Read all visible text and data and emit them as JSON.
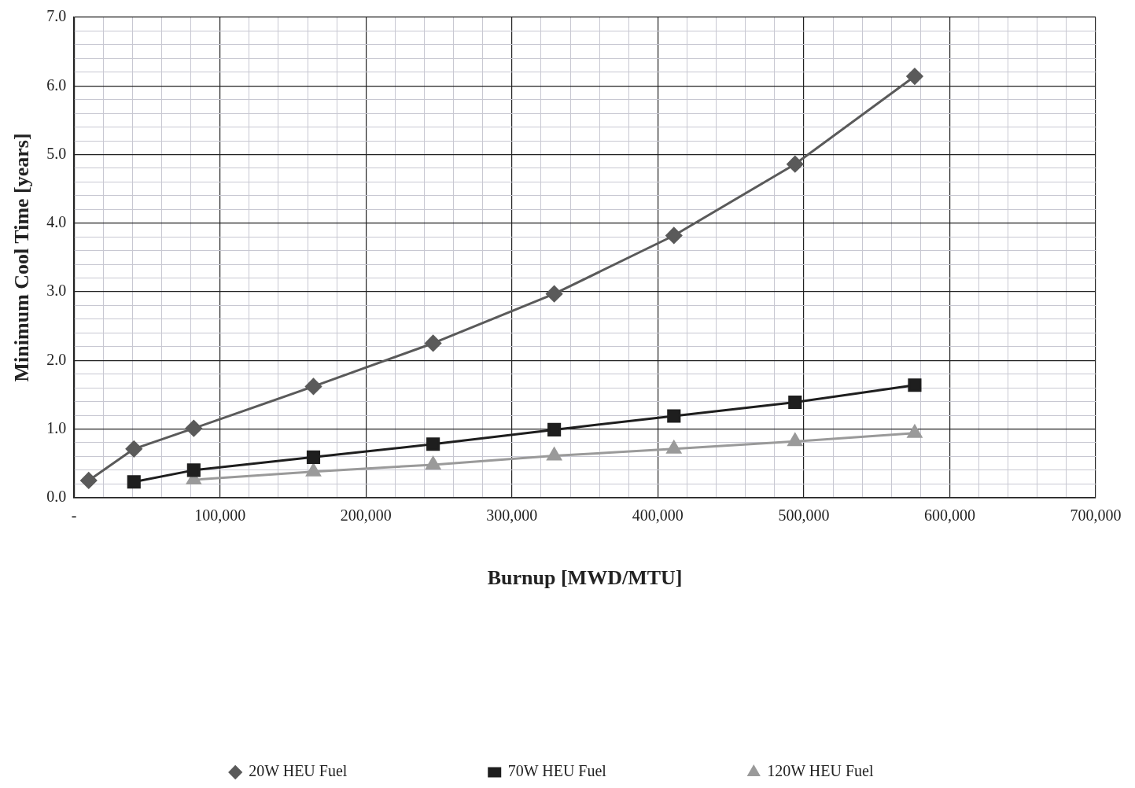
{
  "chart_data": {
    "type": "line",
    "xlabel": "Burnup [MWD/MTU]",
    "ylabel": "Minimum Cool Time [years]",
    "series": [
      {
        "name": "20W HEU Fuel",
        "color": "#5a5a5a",
        "marker": "diamond",
        "x": [
          10000,
          41000,
          82000,
          164000,
          246000,
          329000,
          411000,
          494000,
          576000
        ],
        "values": [
          0.25,
          0.71,
          1.01,
          1.62,
          2.25,
          2.97,
          3.82,
          4.86,
          6.14
        ]
      },
      {
        "name": "70W HEU Fuel",
        "color": "#1e1e1e",
        "marker": "square",
        "x": [
          41000,
          82000,
          164000,
          246000,
          329000,
          411000,
          494000,
          576000
        ],
        "values": [
          0.23,
          0.4,
          0.59,
          0.78,
          0.99,
          1.19,
          1.39,
          1.64
        ]
      },
      {
        "name": "120W HEU Fuel",
        "color": "#9a9a9a",
        "marker": "triangle",
        "x": [
          82000,
          164000,
          246000,
          329000,
          411000,
          494000,
          576000
        ],
        "values": [
          0.26,
          0.38,
          0.48,
          0.61,
          0.71,
          0.82,
          0.94
        ]
      }
    ],
    "xlim": [
      0,
      700000
    ],
    "xticks": [
      {
        "value": 0,
        "label": "-"
      },
      {
        "value": 20000,
        "label": null
      },
      {
        "value": 40000,
        "label": null
      },
      {
        "value": 60000,
        "label": null
      },
      {
        "value": 80000,
        "label": null
      },
      {
        "value": 100000,
        "label": "100,000"
      },
      {
        "value": 120000,
        "label": null
      },
      {
        "value": 140000,
        "label": null
      },
      {
        "value": 160000,
        "label": null
      },
      {
        "value": 180000,
        "label": null
      },
      {
        "value": 200000,
        "label": "200,000"
      },
      {
        "value": 220000,
        "label": null
      },
      {
        "value": 240000,
        "label": null
      },
      {
        "value": 260000,
        "label": null
      },
      {
        "value": 280000,
        "label": null
      },
      {
        "value": 300000,
        "label": "300,000"
      },
      {
        "value": 320000,
        "label": null
      },
      {
        "value": 340000,
        "label": null
      },
      {
        "value": 360000,
        "label": null
      },
      {
        "value": 380000,
        "label": null
      },
      {
        "value": 400000,
        "label": "400,000"
      },
      {
        "value": 420000,
        "label": null
      },
      {
        "value": 440000,
        "label": null
      },
      {
        "value": 460000,
        "label": null
      },
      {
        "value": 480000,
        "label": null
      },
      {
        "value": 500000,
        "label": "500,000"
      },
      {
        "value": 520000,
        "label": null
      },
      {
        "value": 540000,
        "label": null
      },
      {
        "value": 560000,
        "label": null
      },
      {
        "value": 580000,
        "label": null
      },
      {
        "value": 600000,
        "label": "600,000"
      },
      {
        "value": 620000,
        "label": null
      },
      {
        "value": 640000,
        "label": null
      },
      {
        "value": 660000,
        "label": null
      },
      {
        "value": 680000,
        "label": null
      },
      {
        "value": 700000,
        "label": "700,000"
      }
    ],
    "ylim": [
      0,
      7
    ],
    "yticks": [
      {
        "value": 0,
        "label": "0.0"
      },
      {
        "value": 0.2,
        "label": null
      },
      {
        "value": 0.4,
        "label": null
      },
      {
        "value": 0.6,
        "label": null
      },
      {
        "value": 0.8,
        "label": null
      },
      {
        "value": 1,
        "label": "1.0"
      },
      {
        "value": 1.2,
        "label": null
      },
      {
        "value": 1.4,
        "label": null
      },
      {
        "value": 1.6,
        "label": null
      },
      {
        "value": 1.8,
        "label": null
      },
      {
        "value": 2,
        "label": "2.0"
      },
      {
        "value": 2.2,
        "label": null
      },
      {
        "value": 2.4,
        "label": null
      },
      {
        "value": 2.6,
        "label": null
      },
      {
        "value": 2.8,
        "label": null
      },
      {
        "value": 3,
        "label": "3.0"
      },
      {
        "value": 3.2,
        "label": null
      },
      {
        "value": 3.4,
        "label": null
      },
      {
        "value": 3.6,
        "label": null
      },
      {
        "value": 3.8,
        "label": null
      },
      {
        "value": 4,
        "label": "4.0"
      },
      {
        "value": 4.2,
        "label": null
      },
      {
        "value": 4.4,
        "label": null
      },
      {
        "value": 4.6,
        "label": null
      },
      {
        "value": 4.8,
        "label": null
      },
      {
        "value": 5,
        "label": "5.0"
      },
      {
        "value": 5.2,
        "label": null
      },
      {
        "value": 5.4,
        "label": null
      },
      {
        "value": 5.6,
        "label": null
      },
      {
        "value": 5.8,
        "label": null
      },
      {
        "value": 6,
        "label": "6.0"
      },
      {
        "value": 6.2,
        "label": null
      },
      {
        "value": 6.4,
        "label": null
      },
      {
        "value": 6.6,
        "label": null
      },
      {
        "value": 6.8,
        "label": null
      },
      {
        "value": 7,
        "label": "7.0"
      }
    ],
    "grid": true,
    "legend": "bottom",
    "line_style": "solid"
  }
}
